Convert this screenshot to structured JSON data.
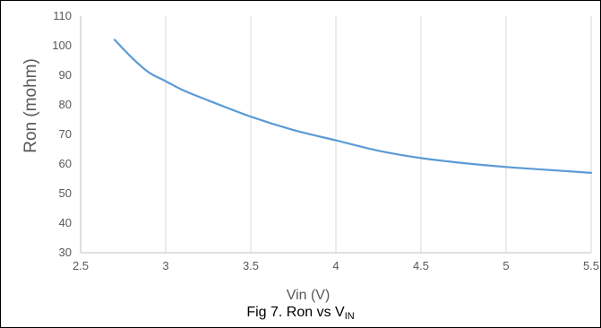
{
  "chart_data": {
    "type": "line",
    "title": "",
    "xlabel": "Vin (V)",
    "ylabel": "Ron (mohm)",
    "xlim": [
      2.5,
      5.5
    ],
    "ylim": [
      30,
      110
    ],
    "x_ticks": [
      "2.5",
      "3",
      "3.5",
      "4",
      "4.5",
      "5",
      "5.5"
    ],
    "y_ticks": [
      "30",
      "40",
      "50",
      "60",
      "70",
      "80",
      "90",
      "100",
      "110"
    ],
    "grid": "vertical",
    "legend": "none",
    "series": [
      {
        "color": "#5b9bd5",
        "x": [
          2.7,
          2.8,
          2.9,
          3.0,
          3.1,
          3.25,
          3.5,
          3.75,
          4.0,
          4.25,
          4.5,
          4.75,
          5.0,
          5.25,
          5.5
        ],
        "y": [
          102,
          96,
          91,
          88,
          85,
          81.5,
          76,
          71.5,
          68,
          64.5,
          62,
          60.3,
          59,
          58,
          57
        ]
      }
    ]
  },
  "caption": {
    "text": "Fig 7. Ron vs V",
    "subscript": "IN"
  }
}
